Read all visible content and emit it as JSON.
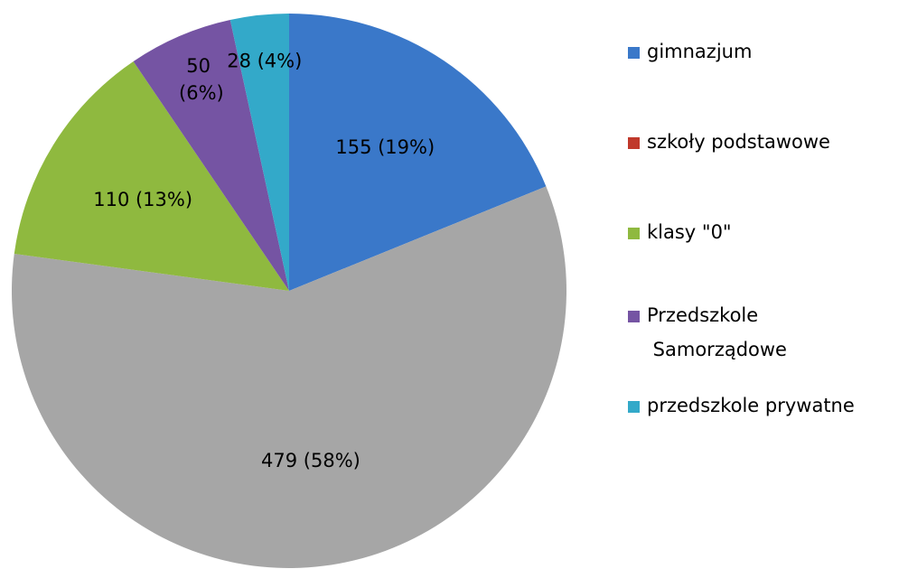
{
  "chart_data": {
    "type": "pie",
    "categories": [
      "gimnazjum",
      "szkoły podstawowe",
      "klasy \"0\"",
      "Przedszkole Samorządowe",
      "przedszkole prywatne"
    ],
    "values": [
      155,
      479,
      110,
      50,
      28
    ],
    "value_labels": [
      "155 (19%)",
      "479 (58%)",
      "110 (13%)",
      "50 (6%)",
      "28 (4%)"
    ],
    "colors": [
      "#3a78c9",
      "#a6a6a6",
      "#8fb93f",
      "#7554a3",
      "#33a9c9"
    ],
    "legend_colors": [
      "#3a78c9",
      "#c0392b",
      "#8fb93f",
      "#7554a3",
      "#33a9c9"
    ],
    "legend": "right"
  }
}
